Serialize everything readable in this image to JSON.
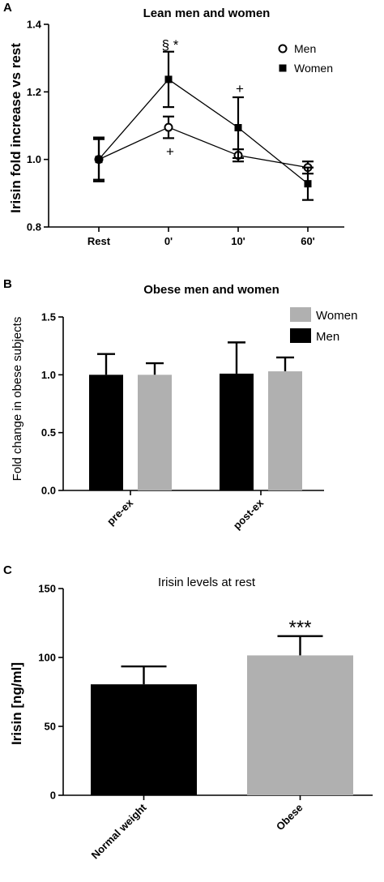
{
  "panel_labels": [
    "A",
    "B",
    "C"
  ],
  "chart_data": [
    {
      "id": "A",
      "type": "line",
      "title": "Lean men and women",
      "ylabel": "Irisin fold increase vs rest",
      "xlabel": "",
      "categories": [
        "Rest",
        "0'",
        "10'",
        "60'"
      ],
      "ylim": [
        0.8,
        1.4
      ],
      "yticks": [
        0.8,
        1.0,
        1.2,
        1.4
      ],
      "ytick_labels": [
        "0.8",
        "1.0",
        "1.2",
        "1.4"
      ],
      "legend": "top-right",
      "series": [
        {
          "name": "Men",
          "marker": "open-circle",
          "values": [
            1.0,
            1.095,
            1.012,
            0.976
          ],
          "errors": [
            0.065,
            0.032,
            0.018,
            0.018
          ]
        },
        {
          "name": "Women",
          "marker": "filled-square",
          "values": [
            1.0,
            1.237,
            1.094,
            0.928
          ],
          "errors": [
            0.06,
            0.082,
            0.09,
            0.048
          ]
        }
      ],
      "annotations": [
        {
          "text": "§ *",
          "category": "0'",
          "y": 1.34
        },
        {
          "text": "+",
          "category": "0'",
          "y": 1.025
        },
        {
          "text": "+",
          "category": "10'",
          "y": 1.21
        }
      ]
    },
    {
      "id": "B",
      "type": "bar",
      "title": "Obese men and women",
      "ylabel": "Fold change in obese subjects",
      "xlabel": "",
      "categories": [
        "pre-ex",
        "post-ex"
      ],
      "ylim": [
        0,
        1.5
      ],
      "yticks": [
        0,
        0.5,
        1.0,
        1.5
      ],
      "ytick_labels": [
        "0.0",
        "0.5",
        "1.0",
        "1.5"
      ],
      "legend": "top-right",
      "legend_order": [
        "Women",
        "Men"
      ],
      "series": [
        {
          "name": "Men",
          "color": "#000000",
          "values": [
            1.0,
            1.01
          ],
          "errors": [
            0.18,
            0.27
          ]
        },
        {
          "name": "Women",
          "color": "#b0b0b0",
          "values": [
            1.0,
            1.03
          ],
          "errors": [
            0.1,
            0.12
          ]
        }
      ]
    },
    {
      "id": "C",
      "type": "bar",
      "title": "Irisin levels at rest",
      "ylabel": "Irisin  [ng/ml]",
      "xlabel": "",
      "categories": [
        "Normal weight",
        "Obese"
      ],
      "colors": [
        "#000000",
        "#b0b0b0"
      ],
      "values": [
        80.5,
        101.5
      ],
      "errors": [
        13,
        14
      ],
      "ylim": [
        0,
        150
      ],
      "yticks": [
        0,
        50,
        100,
        150
      ],
      "ytick_labels": [
        "0",
        "50",
        "100",
        "150"
      ],
      "annotations": [
        {
          "text": "***",
          "category": "Obese",
          "y": 124
        }
      ]
    }
  ]
}
